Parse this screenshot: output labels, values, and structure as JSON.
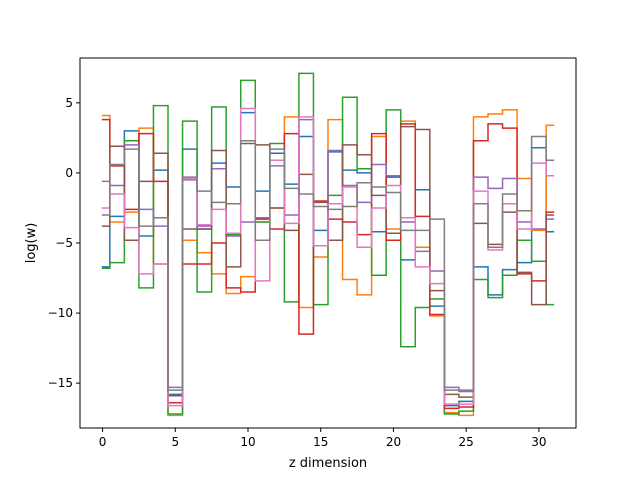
{
  "chart_data": {
    "type": "line",
    "drawstyle": "steps-mid",
    "xlabel": "z dimension",
    "ylabel": "log(w)",
    "xlim": [
      -1.55,
      32.55
    ],
    "ylim": [
      -18.2,
      8.2
    ],
    "x_ticks": [
      0,
      5,
      10,
      15,
      20,
      25,
      30
    ],
    "y_ticks": [
      5,
      0,
      -5,
      -10,
      -15
    ],
    "x_tick_labels": [
      "0",
      "5",
      "10",
      "15",
      "20",
      "25",
      "30"
    ],
    "y_tick_labels": [
      "5",
      "0",
      "−5",
      "−10",
      "−15"
    ],
    "grid": false,
    "x": [
      0,
      1,
      2,
      3,
      4,
      5,
      6,
      7,
      8,
      9,
      10,
      11,
      12,
      13,
      14,
      15,
      16,
      17,
      18,
      19,
      20,
      21,
      22,
      23,
      24,
      25,
      26,
      27,
      28,
      29,
      30,
      31
    ],
    "series": [
      {
        "color": "#1f77b4",
        "values": [
          -6.7,
          -3.1,
          3.0,
          -4.5,
          0.2,
          -15.8,
          1.7,
          -4.0,
          0.7,
          -1.0,
          4.3,
          -1.3,
          1.4,
          -0.8,
          2.6,
          -4.1,
          1.5,
          0.2,
          0.0,
          -4.2,
          -0.3,
          -6.2,
          -1.2,
          -9.5,
          -16.6,
          -16.3,
          -6.7,
          -8.7,
          -6.9,
          -6.4,
          1.8,
          -4.2
        ]
      },
      {
        "color": "#ff7f0e",
        "values": [
          4.1,
          -3.5,
          -2.8,
          3.2,
          -6.5,
          -17.3,
          -4.8,
          -5.7,
          -7.2,
          -8.6,
          -7.4,
          -3.5,
          -2.5,
          4.0,
          -9.6,
          -6.0,
          3.8,
          -7.6,
          -8.7,
          2.6,
          -4.0,
          3.7,
          -5.3,
          -10.2,
          -17.1,
          -17.3,
          4.0,
          4.2,
          4.5,
          -0.4,
          -4.1,
          3.4
        ]
      },
      {
        "color": "#2ca02c",
        "values": [
          -6.8,
          -6.4,
          2.3,
          -8.2,
          4.8,
          -17.2,
          3.7,
          -8.5,
          4.7,
          -4.4,
          6.6,
          -3.5,
          2.1,
          -9.2,
          7.1,
          -9.4,
          -1.6,
          5.4,
          0.3,
          -7.3,
          4.5,
          -12.4,
          -9.6,
          -9.0,
          -17.2,
          -17.0,
          -7.6,
          -8.9,
          -7.3,
          -4.8,
          -6.3,
          -9.4
        ]
      },
      {
        "color": "#d62728",
        "values": [
          3.8,
          0.5,
          -2.6,
          2.8,
          -0.6,
          -16.4,
          -6.5,
          -6.5,
          -5.0,
          -8.2,
          -8.5,
          -3.3,
          -4.0,
          2.8,
          -11.5,
          -2.0,
          -3.3,
          -3.5,
          -4.4,
          2.8,
          -4.8,
          3.5,
          -3.1,
          -10.1,
          -16.8,
          -16.7,
          2.3,
          3.5,
          3.2,
          -7.2,
          -7.7,
          -2.8
        ]
      },
      {
        "color": "#9467bd",
        "values": [
          -0.6,
          -0.9,
          2.0,
          -2.6,
          -3.8,
          -15.3,
          -0.5,
          -3.8,
          0.3,
          -4.5,
          -3.5,
          -3.2,
          0.5,
          -3.0,
          3.8,
          -5.2,
          1.6,
          -0.9,
          -2.1,
          0.6,
          -0.2,
          -3.5,
          -5.6,
          -7.0,
          -15.3,
          -15.5,
          -0.3,
          -1.1,
          -0.4,
          -3.5,
          -4.0,
          -3.3
        ]
      },
      {
        "color": "#8c564b",
        "values": [
          -3.8,
          1.9,
          -4.8,
          -0.6,
          1.4,
          -15.9,
          -4.0,
          -4.0,
          1.6,
          -6.7,
          2.1,
          2.0,
          -2.5,
          -4.1,
          -0.1,
          -2.1,
          -4.8,
          2.0,
          1.3,
          -1.6,
          -4.3,
          3.3,
          3.1,
          -8.4,
          -15.8,
          -16.0,
          -3.6,
          -5.1,
          -2.8,
          -7.1,
          -9.4,
          -3.0
        ]
      },
      {
        "color": "#e377c2",
        "values": [
          -2.5,
          -1.5,
          -3.9,
          -7.2,
          -6.5,
          -16.6,
          -0.4,
          -3.7,
          -2.6,
          -4.3,
          4.6,
          -7.7,
          0.9,
          -3.6,
          4.0,
          -5.2,
          -2.2,
          -1.0,
          -5.3,
          -2.5,
          -0.9,
          -3.2,
          -6.7,
          -7.9,
          -16.5,
          -16.5,
          -1.3,
          -5.5,
          -2.2,
          -4.0,
          0.7,
          -0.2
        ]
      },
      {
        "color": "#7f7f7f",
        "values": [
          -3.0,
          0.6,
          1.7,
          -3.8,
          -3.2,
          -15.5,
          -0.3,
          -1.3,
          -2.1,
          -2.2,
          2.3,
          -4.8,
          1.7,
          -1.1,
          -1.5,
          -2.4,
          -2.6,
          -2.4,
          -0.7,
          -1.0,
          -1.4,
          -4.1,
          -4.1,
          -3.3,
          -15.5,
          -15.6,
          -2.2,
          -5.3,
          -1.5,
          -2.7,
          2.6,
          0.9
        ]
      }
    ]
  }
}
